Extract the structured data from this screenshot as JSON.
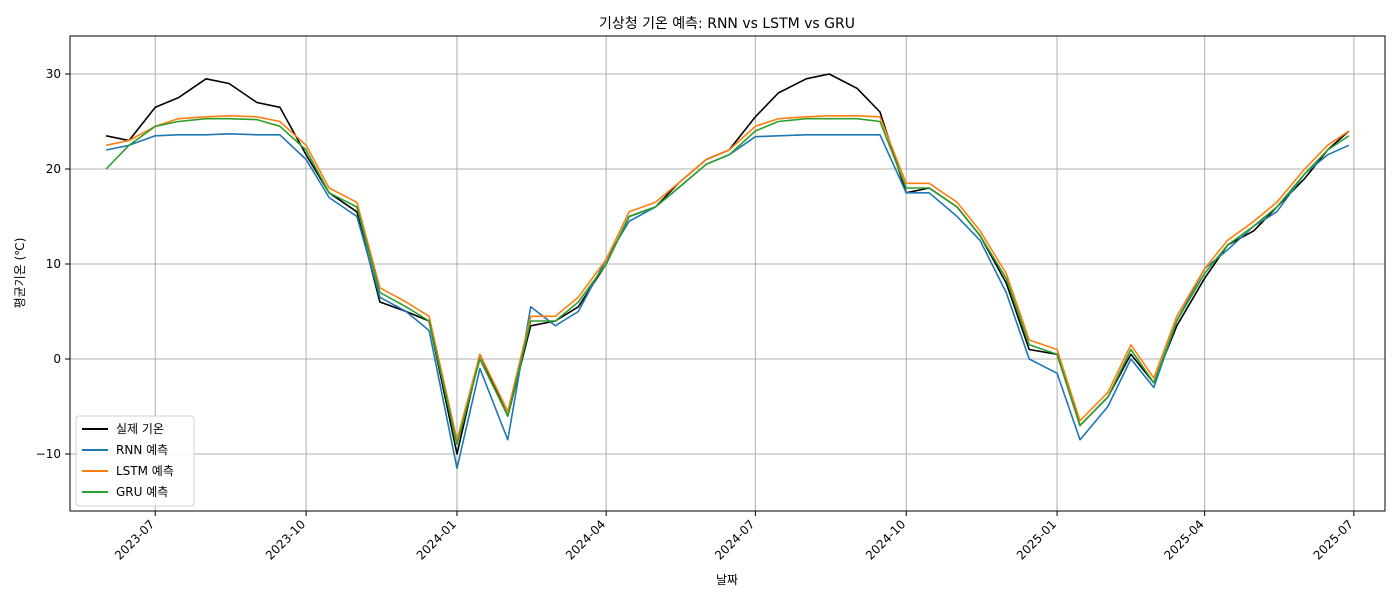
{
  "chart_data": {
    "type": "line",
    "title": "기상청 기온 예측: RNN vs LSTM vs GRU",
    "xlabel": "날짜",
    "ylabel": "평균기온 (℃)",
    "xlim": [
      "2023-05-10",
      "2025-07-20"
    ],
    "ylim": [
      -16,
      34
    ],
    "grid": true,
    "legend_position": "lower-left",
    "x_ticks": [
      "2023-07",
      "2023-10",
      "2024-01",
      "2024-04",
      "2024-07",
      "2024-10",
      "2025-01",
      "2025-04",
      "2025-07"
    ],
    "y_ticks": [
      -10,
      0,
      10,
      20,
      30
    ],
    "y_tick_labels": [
      "−10",
      "0",
      "10",
      "20",
      "30"
    ],
    "x": [
      "2023-06-01",
      "2023-06-15",
      "2023-07-01",
      "2023-07-15",
      "2023-08-01",
      "2023-08-15",
      "2023-09-01",
      "2023-09-15",
      "2023-10-01",
      "2023-10-15",
      "2023-11-01",
      "2023-11-15",
      "2023-12-01",
      "2023-12-15",
      "2024-01-01",
      "2024-01-15",
      "2024-02-01",
      "2024-02-15",
      "2024-03-01",
      "2024-03-15",
      "2024-04-01",
      "2024-04-15",
      "2024-05-01",
      "2024-05-15",
      "2024-06-01",
      "2024-06-15",
      "2024-07-01",
      "2024-07-15",
      "2024-08-01",
      "2024-08-15",
      "2024-09-01",
      "2024-09-15",
      "2024-10-01",
      "2024-10-15",
      "2024-11-01",
      "2024-11-15",
      "2024-12-01",
      "2024-12-15",
      "2025-01-01",
      "2025-01-15",
      "2025-02-01",
      "2025-02-15",
      "2025-03-01",
      "2025-03-15",
      "2025-04-01",
      "2025-04-15",
      "2025-05-01",
      "2025-05-15",
      "2025-06-01",
      "2025-06-15",
      "2025-06-28"
    ],
    "series": [
      {
        "name": "실제 기온",
        "color": "#000000",
        "values": [
          23.5,
          23.0,
          26.5,
          27.5,
          29.5,
          29.0,
          27.0,
          26.5,
          21.5,
          17.5,
          15.5,
          6.0,
          5.0,
          4.0,
          -10.0,
          0.5,
          -6.0,
          3.5,
          4.0,
          5.5,
          10.0,
          15.0,
          16.0,
          18.5,
          21.0,
          22.0,
          25.5,
          28.0,
          29.5,
          30.0,
          28.5,
          26.0,
          17.5,
          18.0,
          16.0,
          13.0,
          8.0,
          1.0,
          0.5,
          -7.0,
          -4.0,
          0.5,
          -2.5,
          3.5,
          8.5,
          12.0,
          13.5,
          16.0,
          19.0,
          22.0,
          24.0
        ]
      },
      {
        "name": "RNN 예측",
        "color": "#1f77b4",
        "values": [
          22.0,
          22.5,
          23.5,
          23.6,
          23.6,
          23.7,
          23.6,
          23.6,
          21.0,
          17.0,
          15.0,
          6.5,
          5.0,
          3.0,
          -11.5,
          -1.0,
          -8.5,
          5.5,
          3.5,
          5.0,
          10.5,
          14.5,
          16.0,
          18.0,
          20.5,
          21.5,
          23.4,
          23.5,
          23.6,
          23.6,
          23.6,
          23.6,
          17.5,
          17.5,
          15.0,
          12.5,
          7.0,
          0.0,
          -1.5,
          -8.5,
          -5.0,
          0.0,
          -3.0,
          4.0,
          9.5,
          11.5,
          14.0,
          15.5,
          19.5,
          21.5,
          22.5
        ]
      },
      {
        "name": "LSTM 예측",
        "color": "#ff7f0e",
        "values": [
          22.5,
          23.0,
          24.5,
          25.3,
          25.5,
          25.6,
          25.5,
          25.0,
          22.5,
          18.0,
          16.5,
          7.5,
          6.0,
          4.5,
          -8.5,
          0.5,
          -5.5,
          4.5,
          4.5,
          6.5,
          10.5,
          15.5,
          16.5,
          18.5,
          21.0,
          22.0,
          24.5,
          25.3,
          25.5,
          25.6,
          25.6,
          25.5,
          18.5,
          18.5,
          16.5,
          13.5,
          9.0,
          2.0,
          1.0,
          -6.5,
          -3.5,
          1.5,
          -2.0,
          4.5,
          9.5,
          12.5,
          14.5,
          16.5,
          20.0,
          22.5,
          24.0
        ]
      },
      {
        "name": "GRU 예측",
        "color": "#2ca02c",
        "values": [
          20.0,
          22.5,
          24.5,
          25.0,
          25.3,
          25.3,
          25.2,
          24.5,
          22.0,
          17.5,
          16.0,
          7.0,
          5.5,
          4.0,
          -9.0,
          0.0,
          -6.0,
          4.0,
          4.0,
          6.0,
          10.0,
          15.0,
          16.0,
          18.0,
          20.5,
          21.5,
          24.0,
          25.0,
          25.3,
          25.3,
          25.3,
          25.0,
          18.0,
          18.0,
          16.0,
          13.0,
          8.5,
          1.5,
          0.5,
          -7.0,
          -4.0,
          1.0,
          -2.5,
          4.0,
          9.0,
          12.0,
          14.0,
          16.0,
          19.5,
          22.0,
          23.5
        ]
      }
    ]
  }
}
